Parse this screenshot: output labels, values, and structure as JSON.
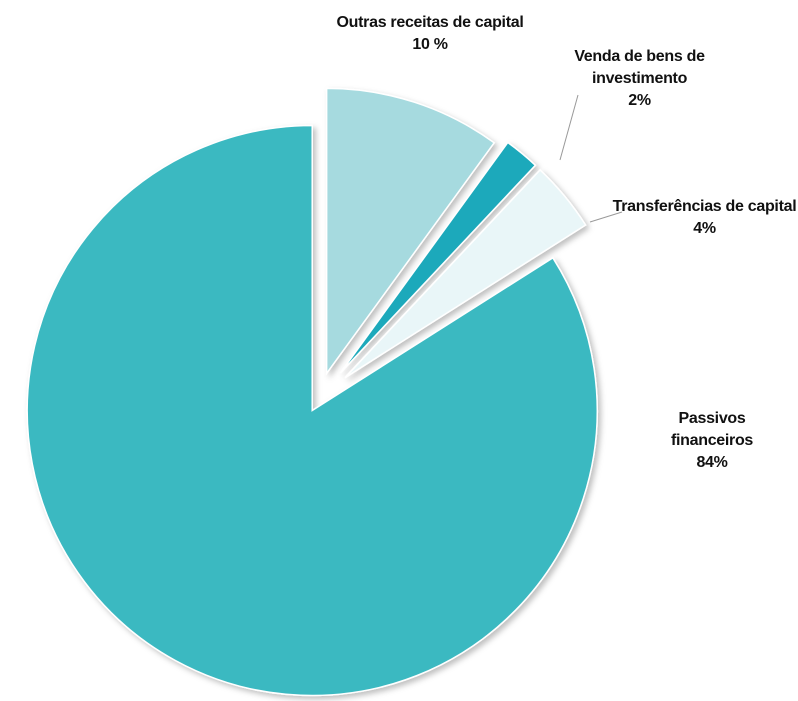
{
  "chart_data": {
    "type": "pie",
    "categories": [
      "Passivos financeiros",
      "Outras receitas de capital",
      "Venda de bens de investimento",
      "Transferências de capital"
    ],
    "values": [
      84,
      10,
      2,
      4
    ],
    "value_labels": [
      "84%",
      "10 %",
      "2%",
      "4%"
    ],
    "colors": [
      "#3bb9c1",
      "#a6dadf",
      "#1fa9bb",
      "#e9f6f8"
    ]
  }
}
